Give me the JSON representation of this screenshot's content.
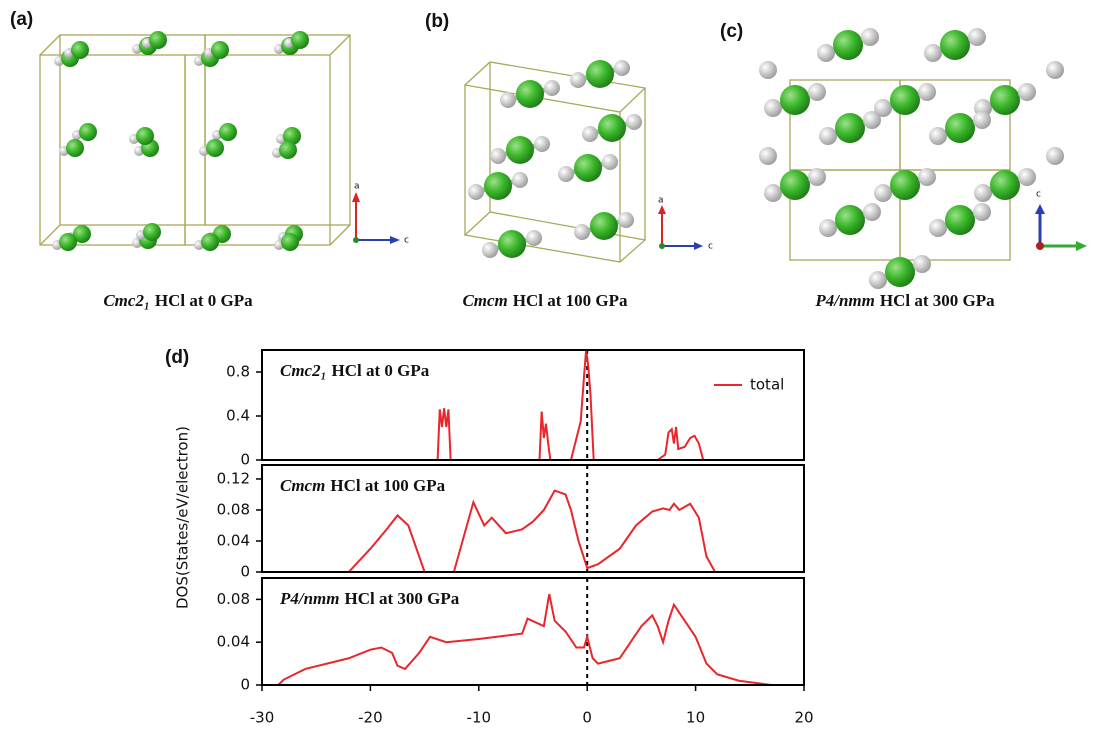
{
  "panels": [
    "(a)",
    "(b)",
    "(c)",
    "(d)"
  ],
  "structures": [
    {
      "space_group": "Cmc2₁",
      "text": "HCl at 0 GPa",
      "axes": [
        "a",
        "c"
      ]
    },
    {
      "space_group": "Cmcm",
      "text": "HCl at 100 GPa",
      "axes": [
        "a",
        "c"
      ]
    },
    {
      "space_group": "P4/nmm",
      "text": "HCl at 300 GPa",
      "axes": [
        "c"
      ]
    }
  ],
  "chart_data": [
    {
      "type": "line",
      "title": {
        "space_group": "Cmc2₁",
        "text": "HCl at 0 GPa"
      },
      "x": [
        -16,
        -13.8,
        -13.6,
        -13.4,
        -13.2,
        -13.0,
        -12.8,
        -12.6,
        -5,
        -4.4,
        -4.2,
        -4.0,
        -3.8,
        -3.6,
        -3.4,
        -1.5,
        -0.6,
        -0.3,
        -0.1,
        0.1,
        0.3,
        0.6,
        1.5,
        6.5,
        7.2,
        7.5,
        7.8,
        8.0,
        8.2,
        8.4,
        9.0,
        9.5,
        9.9,
        10.3,
        10.7,
        12.5
      ],
      "series": [
        {
          "name": "total",
          "color": "#e8262b",
          "values": [
            0,
            0,
            0.46,
            0.3,
            0.47,
            0.3,
            0.46,
            0,
            0,
            0,
            0.44,
            0.2,
            0.33,
            0.15,
            0,
            0,
            0.35,
            0.75,
            1.0,
            0.85,
            0.6,
            0,
            0,
            0,
            0.05,
            0.25,
            0.28,
            0.15,
            0.3,
            0.1,
            0.12,
            0.2,
            0.22,
            0.15,
            0,
            0
          ]
        }
      ],
      "xlim": [
        -30,
        20
      ],
      "ylim": [
        0,
        1.0
      ],
      "yticks": [
        0,
        0.4,
        0.8
      ],
      "vline": 0,
      "legend": "upper right"
    },
    {
      "type": "line",
      "title": {
        "space_group": "Cmcm",
        "text": "HCl at 100 GPa"
      },
      "ylabel": "DOS(States/eV/electron)",
      "x": [
        -24,
        -22,
        -20,
        -18.5,
        -17.5,
        -16.5,
        -15,
        -12.3,
        -11.5,
        -10.5,
        -9.5,
        -8.8,
        -7.5,
        -6,
        -5,
        -4,
        -3,
        -2,
        -1.5,
        -0.8,
        0,
        1,
        3,
        4.5,
        6,
        7,
        7.6,
        8,
        8.5,
        9.5,
        10.3,
        11,
        11.8,
        15
      ],
      "series": [
        {
          "color": "#e8262b",
          "values": [
            0,
            0,
            0.03,
            0.055,
            0.073,
            0.06,
            0,
            0,
            0.04,
            0.09,
            0.06,
            0.07,
            0.05,
            0.055,
            0.065,
            0.08,
            0.105,
            0.1,
            0.08,
            0.04,
            0.005,
            0.01,
            0.03,
            0.06,
            0.078,
            0.082,
            0.08,
            0.088,
            0.08,
            0.088,
            0.07,
            0.02,
            0,
            0
          ]
        }
      ],
      "xlim": [
        -30,
        20
      ],
      "ylim": [
        0,
        0.138
      ],
      "yticks": [
        0,
        0.04,
        0.08,
        0.12
      ],
      "vline": 0
    },
    {
      "type": "line",
      "title": {
        "space_group": "P4/nmm",
        "text": "HCl at 300 GPa"
      },
      "x": [
        -28.5,
        -28,
        -26,
        -22,
        -20,
        -19,
        -18,
        -17.5,
        -16.8,
        -15.5,
        -14.5,
        -13,
        -10,
        -6,
        -5.5,
        -4,
        -3.5,
        -3,
        -2,
        -1,
        -0.3,
        0,
        0.5,
        1,
        3,
        4,
        5,
        6,
        6.5,
        7,
        7.5,
        8,
        9,
        10,
        11,
        12,
        14,
        17,
        20
      ],
      "series": [
        {
          "color": "#e8262b",
          "values": [
            0,
            0.005,
            0.015,
            0.025,
            0.033,
            0.035,
            0.03,
            0.018,
            0.015,
            0.03,
            0.045,
            0.04,
            0.043,
            0.048,
            0.062,
            0.055,
            0.085,
            0.06,
            0.05,
            0.035,
            0.035,
            0.045,
            0.025,
            0.02,
            0.025,
            0.04,
            0.055,
            0.065,
            0.055,
            0.04,
            0.06,
            0.075,
            0.06,
            0.045,
            0.02,
            0.01,
            0.004,
            0,
            0
          ]
        }
      ],
      "xlim": [
        -30,
        20
      ],
      "ylim": [
        0,
        0.1
      ],
      "yticks": [
        0,
        0.04,
        0.08
      ],
      "xticks": [
        -30,
        -20,
        -10,
        0,
        10,
        20
      ],
      "vline": 0
    }
  ]
}
